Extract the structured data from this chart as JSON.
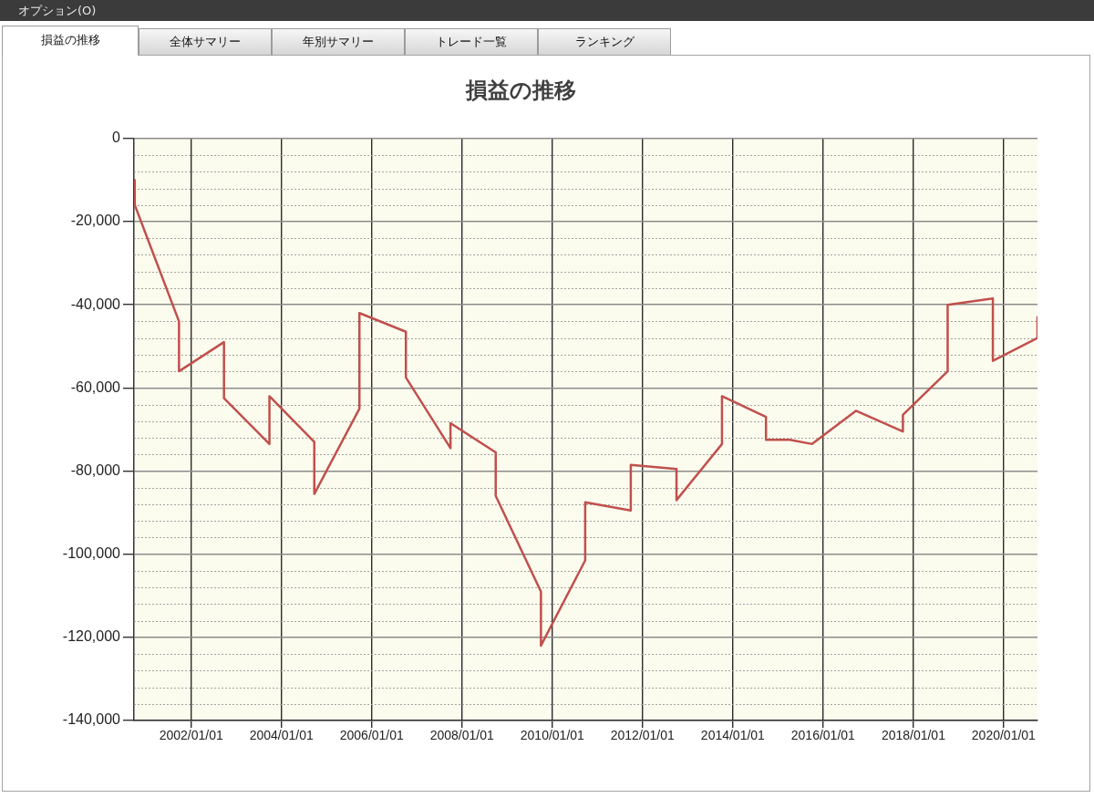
{
  "chart_data": {
    "type": "line",
    "title": "損益の推移",
    "annotations": [
      "オプション(O)",
      "損益の推移",
      "全体サマリー",
      "年別サマリー",
      "トレード一覧",
      "ランキング"
    ],
    "x": [
      "2000-10-01",
      "2000-10-01",
      "2001-09-24",
      "2001-09-24",
      "2002-09-23",
      "2002-09-23",
      "2003-09-26",
      "2003-09-26",
      "2004-09-23",
      "2004-09-23",
      "2005-09-23",
      "2005-09-23",
      "2006-10-04",
      "2006-10-04",
      "2007-09-30",
      "2007-09-30",
      "2008-09-30",
      "2008-09-30",
      "2009-10-01",
      "2009-10-01",
      "2010-09-24",
      "2010-09-24",
      "2011-09-28",
      "2011-09-28",
      "2012-10-02",
      "2012-10-02",
      "2013-10-05",
      "2013-10-05",
      "2014-09-26",
      "2014-09-26",
      "2015-04-08",
      "2015-10-04",
      "2016-09-23",
      "2017-10-08",
      "2017-10-08",
      "2018-10-05",
      "2018-10-05",
      "2019-10-06",
      "2019-10-06",
      "2020-10-01",
      "2020-10-01"
    ],
    "series": [
      {
        "color": "#c0504d",
        "values": [
          -10000,
          -16000,
          -44000,
          -56000,
          -49000,
          -62500,
          -73500,
          -62000,
          -73000,
          -85500,
          -65000,
          -42000,
          -46500,
          -57500,
          -74500,
          -68500,
          -75500,
          -86000,
          -109000,
          -122000,
          -101500,
          -87500,
          -89500,
          -78500,
          -79500,
          -87000,
          -73500,
          -62000,
          -67000,
          -72500,
          -72500,
          -73500,
          -65500,
          -70500,
          -66500,
          -56000,
          -40000,
          -38500,
          -53500,
          -48000,
          -43000
        ]
      }
    ],
    "xlim": [
      "2000-09-25",
      "2020-10-01"
    ],
    "xticks": [
      {
        "value": "2002-01-01",
        "label": "2002/01/01"
      },
      {
        "value": "2004-01-01",
        "label": "2004/01/01"
      },
      {
        "value": "2006-01-01",
        "label": "2006/01/01"
      },
      {
        "value": "2008-01-01",
        "label": "2008/01/01"
      },
      {
        "value": "2010-01-01",
        "label": "2010/01/01"
      },
      {
        "value": "2012-01-01",
        "label": "2012/01/01"
      },
      {
        "value": "2014-01-01",
        "label": "2014/01/01"
      },
      {
        "value": "2016-01-01",
        "label": "2016/01/01"
      },
      {
        "value": "2018-01-01",
        "label": "2018/01/01"
      },
      {
        "value": "2020-01-01",
        "label": "2020/01/01"
      }
    ],
    "ylim": [
      -140000,
      0
    ],
    "yticks": [
      0,
      {
        "value": -4000,
        "label": null
      },
      {
        "value": -8000,
        "label": null
      },
      {
        "value": -12000,
        "label": null
      },
      {
        "value": -16000,
        "label": null
      },
      {
        "value": -20000,
        "label": "-20,000"
      },
      {
        "value": -24000,
        "label": null
      },
      {
        "value": -28000,
        "label": null
      },
      {
        "value": -32000,
        "label": null
      },
      {
        "value": -36000,
        "label": null
      },
      {
        "value": -40000,
        "label": "-40,000"
      },
      {
        "value": -44000,
        "label": null
      },
      {
        "value": -48000,
        "label": null
      },
      {
        "value": -52000,
        "label": null
      },
      {
        "value": -56000,
        "label": null
      },
      {
        "value": -60000,
        "label": "-60,000"
      },
      {
        "value": -64000,
        "label": null
      },
      {
        "value": -68000,
        "label": null
      },
      {
        "value": -72000,
        "label": null
      },
      {
        "value": -76000,
        "label": null
      },
      {
        "value": -80000,
        "label": "-80,000"
      },
      {
        "value": -84000,
        "label": null
      },
      {
        "value": -88000,
        "label": null
      },
      {
        "value": -92000,
        "label": null
      },
      {
        "value": -96000,
        "label": null
      },
      {
        "value": -100000,
        "label": "-100,000"
      },
      {
        "value": -104000,
        "label": null
      },
      {
        "value": -108000,
        "label": null
      },
      {
        "value": -112000,
        "label": null
      },
      {
        "value": -116000,
        "label": null
      },
      {
        "value": -120000,
        "label": "-120,000"
      },
      {
        "value": -124000,
        "label": null
      },
      {
        "value": -128000,
        "label": null
      },
      {
        "value": -132000,
        "label": null
      },
      {
        "value": -136000,
        "label": null
      },
      {
        "value": -140000,
        "label": "-140,000"
      }
    ],
    "grid": true,
    "marker": "none"
  }
}
